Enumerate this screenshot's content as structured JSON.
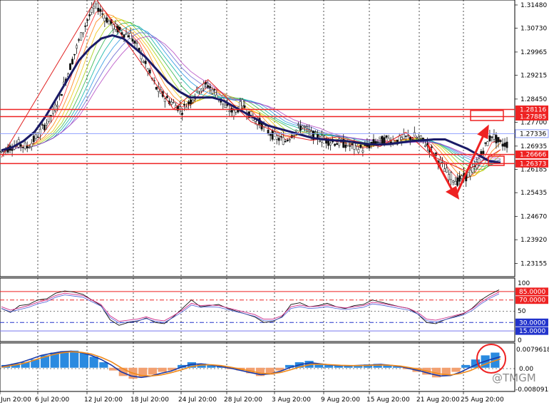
{
  "chart_data": [
    {
      "type": "candlestick",
      "instrument": "",
      "title": "",
      "ylim": [
        1.2273,
        1.3164
      ],
      "price_axis_ticks": [
        "1.31480",
        "1.30730",
        "1.29965",
        "1.29215",
        "1.28450",
        "1.27700",
        "1.26935",
        "1.26185",
        "1.25435",
        "1.24670",
        "1.23920",
        "1.23155"
      ],
      "time_axis_labels": [
        "Jun 20:00",
        "6 Jul 20:00",
        "12 Jul 20:00",
        "18 Jul 20:00",
        "24 Jul 20:00",
        "28 Jul 20:00",
        "3 Aug 20:00",
        "9 Aug 20:00",
        "15 Aug 20:00",
        "21 Aug 20:00",
        "25 Aug 20:00"
      ],
      "horizontal_levels": [
        {
          "label": "1.28116",
          "value": 1.28116,
          "boxed": true
        },
        {
          "label": "1.27885",
          "value": 1.27885,
          "boxed": true
        },
        {
          "label": "1.26666",
          "value": 1.26666,
          "boxed": true
        },
        {
          "label": "1.26373",
          "value": 1.26373,
          "boxed": true
        }
      ],
      "current_price": {
        "label": "1.27336",
        "value": 1.27336
      },
      "close_path": [
        1.2675,
        1.269,
        1.27,
        1.269,
        1.272,
        1.276,
        1.28,
        1.287,
        1.295,
        1.303,
        1.31,
        1.315,
        1.311,
        1.308,
        1.306,
        1.305,
        1.3,
        1.294,
        1.288,
        1.285,
        1.283,
        1.281,
        1.284,
        1.288,
        1.289,
        1.286,
        1.282,
        1.28,
        1.283,
        1.279,
        1.277,
        1.274,
        1.272,
        1.271,
        1.274,
        1.276,
        1.273,
        1.272,
        1.271,
        1.2705,
        1.27,
        1.269,
        1.2685,
        1.27,
        1.271,
        1.2715,
        1.271,
        1.272,
        1.2725,
        1.271,
        1.268,
        1.264,
        1.26,
        1.258,
        1.2595,
        1.262,
        1.268,
        1.273,
        1.27
      ],
      "moving_average_path": [
        1.268,
        1.269,
        1.271,
        1.274,
        1.279,
        1.285,
        1.291,
        1.297,
        1.301,
        1.304,
        1.305,
        1.304,
        1.301,
        1.298,
        1.294,
        1.29,
        1.287,
        1.285,
        1.285,
        1.285,
        1.284,
        1.282,
        1.28,
        1.278,
        1.276,
        1.275,
        1.274,
        1.273,
        1.272,
        1.2715,
        1.2712,
        1.271,
        1.2705,
        1.27,
        1.2698,
        1.27,
        1.2705,
        1.271,
        1.2712,
        1.2715,
        1.2715,
        1.27,
        1.2685,
        1.2665,
        1.2645,
        1.264
      ]
    },
    {
      "type": "line",
      "title": "",
      "ylim": [
        0,
        100
      ],
      "ticks": [
        "100",
        "50",
        "0"
      ],
      "levels": [
        {
          "label": "85.0000",
          "value": 85
        },
        {
          "label": "70.0000",
          "value": 70
        },
        {
          "label": "30.0000",
          "value": 30
        },
        {
          "label": "15.0000",
          "value": 15
        }
      ],
      "series": [
        {
          "values": [
            55,
            48,
            60,
            62,
            70,
            72,
            82,
            86,
            84,
            80,
            70,
            60,
            35,
            25,
            30,
            32,
            38,
            30,
            28,
            40,
            55,
            70,
            58,
            60,
            62,
            55,
            50,
            45,
            40,
            30,
            32,
            40,
            62,
            65,
            58,
            60,
            64,
            58,
            55,
            60,
            62,
            70,
            66,
            62,
            58,
            55,
            45,
            30,
            28,
            35,
            40,
            45,
            55,
            70,
            80,
            88
          ]
        },
        {
          "values": [
            58,
            52,
            56,
            60,
            66,
            70,
            78,
            82,
            80,
            78,
            70,
            62,
            42,
            32,
            34,
            36,
            40,
            35,
            33,
            42,
            52,
            64,
            60,
            61,
            60,
            56,
            52,
            48,
            44,
            36,
            36,
            42,
            58,
            61,
            58,
            59,
            61,
            58,
            56,
            58,
            60,
            66,
            64,
            61,
            58,
            55,
            48,
            36,
            34,
            38,
            42,
            46,
            54,
            66,
            76,
            84
          ]
        }
      ]
    },
    {
      "type": "bar",
      "title": "",
      "ylim": [
        -0.0080912,
        0.0079618
      ],
      "ticks": [
        "0.0079618",
        "0.00",
        "-0.0080912"
      ],
      "histogram": [
        0.001,
        0.0015,
        0.002,
        0.003,
        0.0045,
        0.0055,
        0.006,
        0.0062,
        0.0055,
        0.004,
        0.002,
        -0.001,
        -0.003,
        -0.004,
        -0.0035,
        -0.0025,
        -0.0015,
        -0.001,
        0.001,
        0.002,
        0.0015,
        0.001,
        0.0005,
        -0.0005,
        -0.001,
        -0.002,
        -0.003,
        -0.0025,
        -0.001,
        0.001,
        0.002,
        0.0025,
        0.0015,
        0.001,
        0.0008,
        0.0006,
        0.0009,
        0.0012,
        0.0014,
        0.001,
        0.0005,
        -0.0005,
        -0.0015,
        -0.0025,
        -0.0035,
        -0.003,
        -0.0015,
        0.001,
        0.003,
        0.0045,
        0.0055
      ],
      "series": [
        {
          "values": [
            0.0005,
            0.0012,
            0.002,
            0.0032,
            0.0045,
            0.0052,
            0.0058,
            0.006,
            0.0055,
            0.0045,
            0.003,
            0.001,
            -0.0015,
            -0.003,
            -0.0035,
            -0.003,
            -0.002,
            -0.0012,
            0.0002,
            0.0012,
            0.0014,
            0.001,
            0.0004,
            -0.0002,
            -0.001,
            -0.0018,
            -0.0025,
            -0.0022,
            -0.0012,
            0.0002,
            0.0012,
            0.0018,
            0.0014,
            0.001,
            0.0008,
            0.0007,
            0.0009,
            0.001,
            0.0012,
            0.0009,
            0.0004,
            -0.0004,
            -0.0012,
            -0.0022,
            -0.003,
            -0.0028,
            -0.0016,
            0.0002,
            0.0018,
            0.003,
            0.004
          ]
        },
        {
          "values": [
            0.0002,
            0.0008,
            0.0014,
            0.0024,
            0.0036,
            0.0046,
            0.0054,
            0.0058,
            0.0056,
            0.005,
            0.0038,
            0.0022,
            0.0,
            -0.0018,
            -0.0028,
            -0.003,
            -0.0026,
            -0.0018,
            -0.0008,
            0.0004,
            0.001,
            0.0011,
            0.0008,
            0.0002,
            -0.0005,
            -0.0012,
            -0.002,
            -0.0022,
            -0.0017,
            -0.0007,
            0.0004,
            0.0012,
            0.0013,
            0.0011,
            0.0009,
            0.0008,
            0.0008,
            0.0009,
            0.001,
            0.0009,
            0.0006,
            0.0,
            -0.0007,
            -0.0015,
            -0.0023,
            -0.0026,
            -0.0021,
            -0.001,
            0.0006,
            0.002,
            0.0032
          ]
        }
      ]
    }
  ],
  "watermark": "@TMGM"
}
